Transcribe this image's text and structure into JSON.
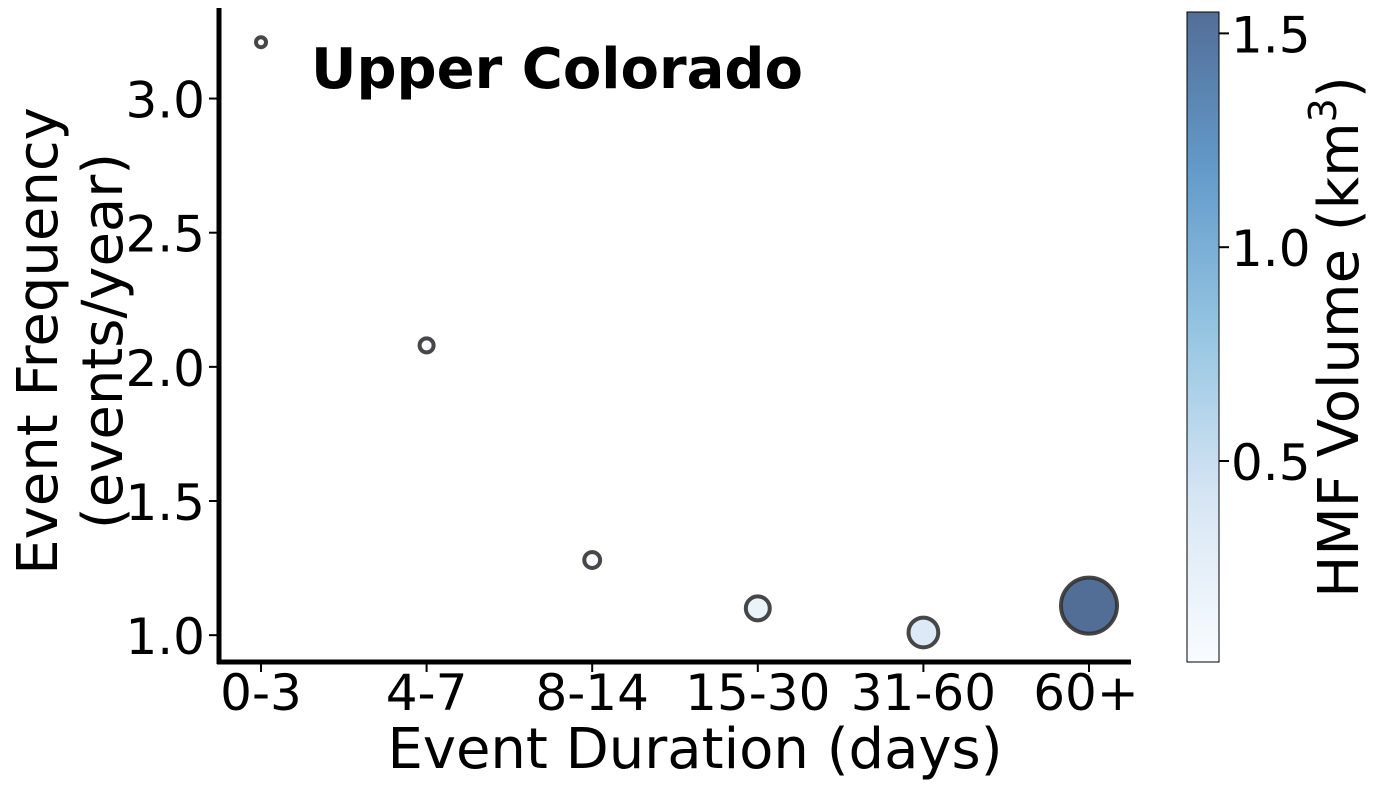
{
  "chart_data": {
    "type": "scatter",
    "title": "Upper Colorado",
    "xlabel": "Event Duration (days)",
    "ylabel_line1": "Event Frequency",
    "ylabel_line2": "(events/year)",
    "categories": [
      "0-3",
      "4-7",
      "8-14",
      "15-30",
      "31-60",
      "60+"
    ],
    "series": [
      {
        "frequency": [
          3.21,
          2.08,
          1.28,
          1.1,
          1.01,
          1.11
        ],
        "hmf_volume_km3": [
          0.01,
          0.04,
          0.06,
          0.2,
          0.35,
          1.55
        ]
      }
    ],
    "ylim": [
      0.9,
      3.33
    ],
    "yticks": [
      "1.0",
      "1.5",
      "2.0",
      "2.5",
      "3.0"
    ],
    "colorbar": {
      "label_prefix": "HMF Volume (km",
      "label_sup": "3",
      "label_suffix": ")",
      "range": [
        0.03,
        1.55
      ],
      "ticks": [
        "0.5",
        "1.0",
        "1.5"
      ],
      "colors": [
        "#f7fbff",
        "#c6dbef",
        "#6baed6",
        "#2171b5",
        "#08306b"
      ],
      "alpha": 0.7
    },
    "marker_edge_color": "#333333",
    "grid": false,
    "legend": "none"
  }
}
